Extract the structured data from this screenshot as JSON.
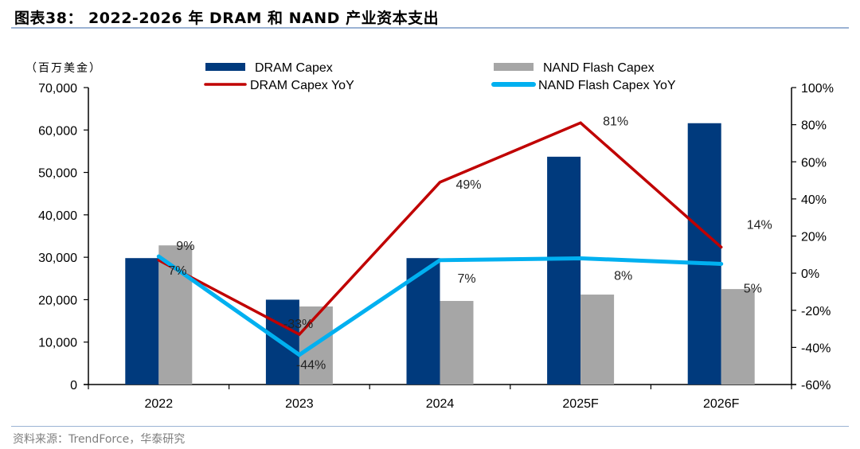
{
  "title": "图表38：  2022-2026 年 DRAM 和 NAND 产业资本支出",
  "footer": "资料来源：TrendForce，华泰研究",
  "chart_data": {
    "type": "bar",
    "title": "2022-2026 年 DRAM 和 NAND 产业资本支出",
    "unit_label": "（百万美金）",
    "categories": [
      "2022",
      "2023",
      "2024",
      "2025F",
      "2026F"
    ],
    "series": [
      {
        "name": "DRAM Capex",
        "kind": "bar",
        "axis": "left",
        "color": "#003a7d",
        "values": [
          29800,
          20000,
          29800,
          53700,
          61600
        ]
      },
      {
        "name": "NAND Flash Capex",
        "kind": "bar",
        "axis": "left",
        "color": "#a6a6a6",
        "values": [
          32800,
          18400,
          19700,
          21200,
          22500
        ]
      },
      {
        "name": "DRAM Capex YoY",
        "kind": "line",
        "axis": "right",
        "color": "#c00000",
        "values": [
          7,
          -33,
          49,
          81,
          14
        ],
        "labels": [
          "7%",
          "-33%",
          "49%",
          "81%",
          "14%"
        ]
      },
      {
        "name": "NAND Flash Capex YoY",
        "kind": "line",
        "axis": "right",
        "color": "#00b0f0",
        "values": [
          9,
          -44,
          7,
          8,
          5
        ],
        "labels": [
          "9%",
          "-44%",
          "7%",
          "8%",
          "5%"
        ]
      }
    ],
    "left_axis": {
      "min": 0,
      "max": 70000,
      "step": 10000,
      "tick_labels": [
        "0",
        "10,000",
        "20,000",
        "30,000",
        "40,000",
        "50,000",
        "60,000",
        "70,000"
      ]
    },
    "right_axis": {
      "min": -60,
      "max": 100,
      "step": 20,
      "tick_labels": [
        "-60%",
        "-40%",
        "-20%",
        "0%",
        "20%",
        "40%",
        "60%",
        "80%",
        "100%"
      ]
    },
    "legend": {
      "position": "top",
      "entries": [
        "DRAM Capex",
        "NAND Flash Capex",
        "DRAM Capex YoY",
        "NAND Flash Capex YoY"
      ]
    },
    "grid": false
  }
}
